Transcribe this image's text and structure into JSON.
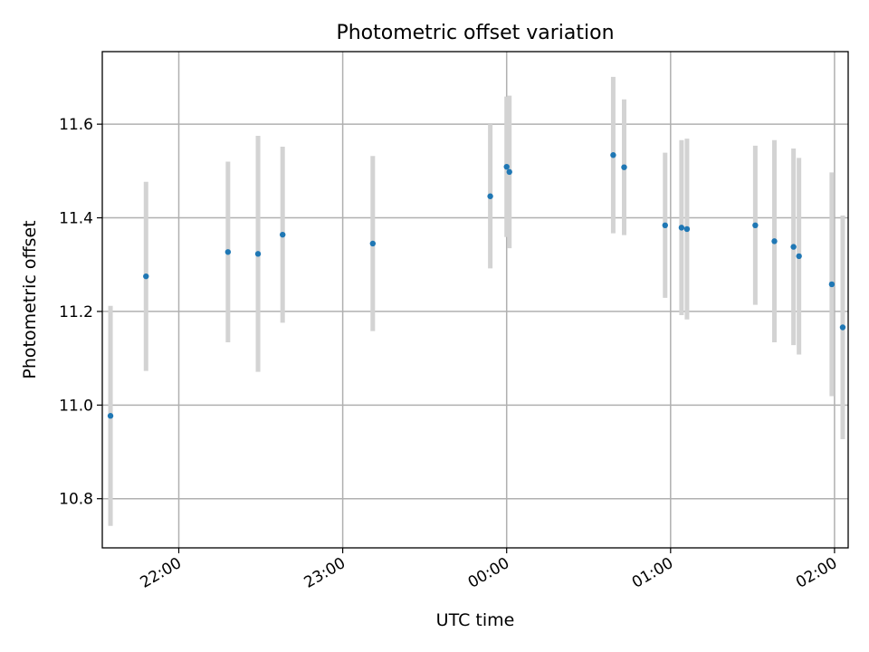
{
  "chart_data": {
    "type": "scatter",
    "title": "Photometric offset variation",
    "xlabel": "UTC time",
    "ylabel": "Photometric offset",
    "x_axis": {
      "kind": "time",
      "range": [
        "21:32",
        "02:05"
      ],
      "ticks": [
        "22:00",
        "23:00",
        "00:00",
        "01:00",
        "02:00"
      ]
    },
    "y_axis": {
      "range": [
        10.695,
        11.755
      ],
      "ticks": [
        10.8,
        11.0,
        11.2,
        11.4,
        11.6
      ],
      "tick_labels": [
        "10.8",
        "11.0",
        "11.2",
        "11.4",
        "11.6"
      ]
    },
    "grid": true,
    "colors": {
      "point": "#1f77b4",
      "errorbar": "#d3d3d3",
      "grid": "#b0b0b0"
    },
    "points": [
      {
        "x": "21:35",
        "y": 10.977,
        "err": 0.235
      },
      {
        "x": "21:48",
        "y": 11.275,
        "err": 0.202
      },
      {
        "x": "22:18",
        "y": 11.327,
        "err": 0.193
      },
      {
        "x": "22:29",
        "y": 11.323,
        "err": 0.252
      },
      {
        "x": "22:38",
        "y": 11.364,
        "err": 0.188
      },
      {
        "x": "23:11",
        "y": 11.345,
        "err": 0.187
      },
      {
        "x": "23:54",
        "y": 11.446,
        "err": 0.154
      },
      {
        "x": "00:00",
        "y": 11.509,
        "err": 0.15
      },
      {
        "x": "00:01",
        "y": 11.498,
        "err": 0.163
      },
      {
        "x": "00:39",
        "y": 11.534,
        "err": 0.167
      },
      {
        "x": "00:43",
        "y": 11.508,
        "err": 0.145
      },
      {
        "x": "00:58",
        "y": 11.384,
        "err": 0.155
      },
      {
        "x": "01:04",
        "y": 11.379,
        "err": 0.187
      },
      {
        "x": "01:06",
        "y": 11.376,
        "err": 0.193
      },
      {
        "x": "01:31",
        "y": 11.384,
        "err": 0.17
      },
      {
        "x": "01:38",
        "y": 11.35,
        "err": 0.216
      },
      {
        "x": "01:45",
        "y": 11.338,
        "err": 0.21
      },
      {
        "x": "01:47",
        "y": 11.318,
        "err": 0.21
      },
      {
        "x": "01:59",
        "y": 11.258,
        "err": 0.239
      },
      {
        "x": "02:03",
        "y": 11.166,
        "err": 0.239
      }
    ]
  }
}
